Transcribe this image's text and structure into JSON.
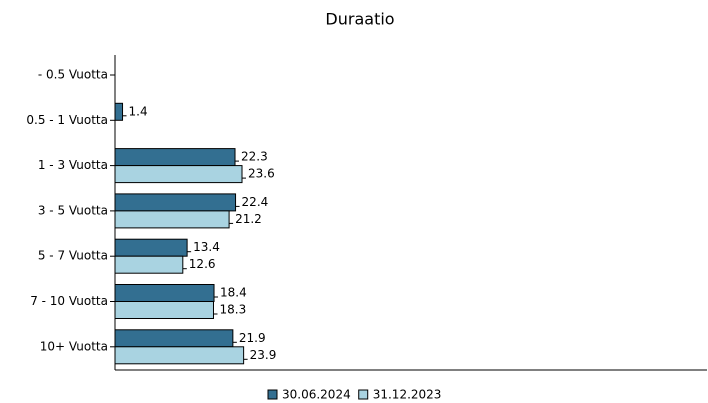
{
  "chart_data": {
    "type": "bar",
    "orientation": "horizontal",
    "title": "Duraatio",
    "categories": [
      "- 0.5 Vuotta",
      "0.5 - 1 Vuotta",
      "1 - 3 Vuotta",
      "3 - 5 Vuotta",
      "5 - 7 Vuotta",
      "7 - 10 Vuotta",
      "10+ Vuotta"
    ],
    "series": [
      {
        "name": "30.06.2024",
        "color": "#336f91",
        "values": [
          null,
          1.4,
          22.3,
          22.4,
          13.4,
          18.4,
          21.9
        ]
      },
      {
        "name": "31.12.2023",
        "color": "#a9d3e1",
        "values": [
          null,
          null,
          23.6,
          21.2,
          12.6,
          18.3,
          23.9
        ]
      }
    ],
    "xlim": [
      0,
      110
    ],
    "legend": "bottom"
  }
}
